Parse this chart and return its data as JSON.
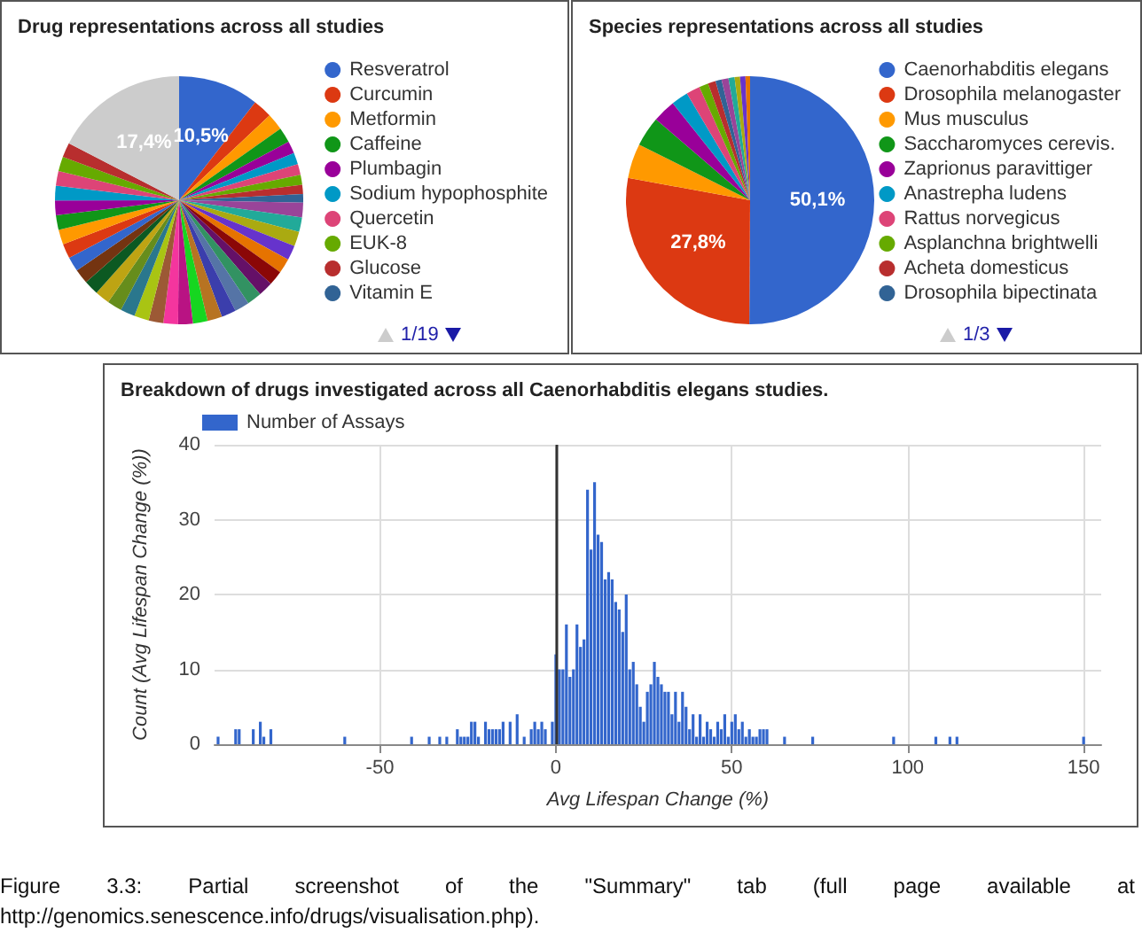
{
  "chart_data": [
    {
      "type": "pie",
      "title": "Drug representations across all studies",
      "legend": "right",
      "categories": [
        "Resveratrol",
        "Curcumin",
        "Metformin",
        "Caffeine",
        "Plumbagin",
        "Sodium hypophosphite",
        "Quercetin",
        "EUK-8",
        "Glucose",
        "Vitamin E",
        null,
        null,
        null,
        null,
        null,
        null,
        null,
        null,
        null,
        null,
        null,
        null,
        null,
        null,
        null,
        null,
        null,
        null,
        null,
        null,
        null,
        null,
        null,
        null,
        null,
        null,
        null,
        null,
        null,
        null,
        null
      ],
      "values": [
        10.5,
        2.5,
        2.2,
        2.0,
        1.6,
        1.5,
        1.4,
        1.3,
        1.2,
        1.1,
        1.91,
        1.91,
        1.91,
        1.91,
        1.91,
        1.91,
        1.91,
        1.91,
        1.91,
        1.91,
        1.91,
        1.91,
        1.91,
        1.91,
        1.91,
        1.91,
        1.91,
        1.91,
        1.91,
        1.91,
        1.91,
        1.91,
        1.91,
        1.91,
        1.91,
        1.91,
        1.91,
        1.91,
        1.91,
        1.91,
        17.4
      ],
      "colors": [
        "#3366cc",
        "#dc3912",
        "#ff9900",
        "#109618",
        "#990099",
        "#0099c6",
        "#dd4477",
        "#66aa00",
        "#b82e2e",
        "#316395",
        "#994499",
        "#22aa99",
        "#aaaa11",
        "#6633cc",
        "#e67300",
        "#8b0707",
        "#651067",
        "#329262",
        "#5574a6",
        "#3b3eac",
        "#b77322",
        "#16d620",
        "#b91383",
        "#f4359e",
        "#9c5935",
        "#a9c413",
        "#2a778d",
        "#668d1c",
        "#bea413",
        "#0c5922",
        "#743411",
        "#3366cc",
        "#dc3912",
        "#ff9900",
        "#109618",
        "#990099",
        "#0099c6",
        "#dd4477",
        "#66aa00",
        "#b82e2e",
        "#cccccc"
      ],
      "value_labels": [
        "10,5%",
        null,
        null,
        null,
        null,
        null,
        null,
        null,
        null,
        null,
        null,
        null,
        null,
        null,
        null,
        null,
        null,
        null,
        null,
        null,
        null,
        null,
        null,
        null,
        null,
        null,
        null,
        null,
        null,
        null,
        null,
        null,
        null,
        null,
        null,
        null,
        null,
        null,
        null,
        null,
        "17,4%"
      ],
      "annotations": [
        "1/19"
      ]
    },
    {
      "type": "pie",
      "title": "Species representations across all studies",
      "legend": "right",
      "categories": [
        "Caenorhabditis elegans",
        "Drosophila melanogaster",
        "Mus musculus",
        "Saccharomyces cerevis.",
        "Zaprionus paravittiger",
        "Anastrepha ludens",
        "Rattus norvegicus",
        "Asplanchna brightwelli",
        "Acheta domesticus",
        "Drosophila bipectinata",
        null,
        null,
        null,
        null,
        null
      ],
      "values": [
        50.1,
        27.8,
        4.5,
        3.9,
        3.0,
        2.2,
        1.8,
        1.2,
        1.0,
        0.8,
        0.9,
        0.8,
        0.7,
        0.7,
        0.6
      ],
      "colors": [
        "#3366cc",
        "#dc3912",
        "#ff9900",
        "#109618",
        "#990099",
        "#0099c6",
        "#dd4477",
        "#66aa00",
        "#b82e2e",
        "#316395",
        "#994499",
        "#22aa99",
        "#aaaa11",
        "#6633cc",
        "#e67300"
      ],
      "value_labels": [
        "50,1%",
        "27,8%",
        null,
        null,
        null,
        null,
        null,
        null,
        null,
        null,
        null,
        null,
        null,
        null,
        null
      ],
      "annotations": [
        "1/3"
      ]
    },
    {
      "type": "bar",
      "title": "Breakdown of drugs investigated across all Caenorhabditis elegans studies.",
      "xlabel": "Avg Lifespan Change (%)",
      "ylabel": "Count (Avg Lifespan Change (%))",
      "legend": "top left",
      "grid": true,
      "x": [
        -96,
        -91,
        -90,
        -86,
        -84,
        -83,
        -81,
        -60,
        -41,
        -36,
        -33,
        -31,
        -28,
        -27,
        -26,
        -25,
        -24,
        -23,
        -22,
        -20,
        -19,
        -18,
        -17,
        -16,
        -15,
        -13,
        -11,
        -9,
        -7,
        -6,
        -5,
        -4,
        -3,
        -1,
        0,
        1,
        2,
        3,
        4,
        5,
        6,
        7,
        8,
        9,
        10,
        11,
        12,
        13,
        14,
        15,
        16,
        17,
        18,
        19,
        20,
        21,
        22,
        23,
        24,
        25,
        26,
        27,
        28,
        29,
        30,
        31,
        32,
        33,
        34,
        35,
        36,
        37,
        38,
        39,
        40,
        41,
        42,
        43,
        44,
        45,
        46,
        47,
        48,
        49,
        50,
        51,
        52,
        53,
        54,
        55,
        56,
        57,
        58,
        59,
        60,
        65,
        73,
        96,
        108,
        112,
        114,
        150
      ],
      "series": [
        {
          "name": "Number of Assays",
          "color": "#3366cc",
          "values": [
            1,
            2,
            2,
            2,
            3,
            1,
            2,
            1,
            1,
            1,
            1,
            1,
            2,
            1,
            1,
            1,
            3,
            3,
            1,
            3,
            2,
            2,
            2,
            2,
            3,
            3,
            4,
            1,
            2,
            3,
            2,
            3,
            2,
            3,
            12,
            10,
            10,
            16,
            9,
            10,
            16,
            13,
            14,
            34,
            26,
            35,
            28,
            27,
            22,
            23,
            22,
            19,
            18,
            15,
            20,
            10,
            11,
            8,
            5,
            3,
            7,
            8,
            11,
            9,
            8,
            7,
            7,
            4,
            7,
            3,
            7,
            5,
            2,
            4,
            1,
            4,
            1,
            3,
            2,
            1,
            3,
            2,
            4,
            1,
            3,
            4,
            2,
            3,
            1,
            2,
            1,
            1,
            2,
            2,
            2,
            1,
            1,
            1,
            1,
            1,
            1,
            1
          ]
        }
      ],
      "xlim": [
        -97,
        155
      ],
      "xticks": [
        -50,
        0,
        50,
        100,
        150
      ],
      "ylim": [
        0,
        40
      ],
      "yticks": [
        0,
        10,
        20,
        30,
        40
      ],
      "ref_lines": [
        {
          "axis": "x",
          "value": 0,
          "color": "#333333"
        }
      ],
      "annotations": [
        "Figure 3.3: Partial screenshot of the \"Summary\" tab (full page available at http://genomics.senescence.info/drugs/visualisation.php)."
      ]
    }
  ]
}
